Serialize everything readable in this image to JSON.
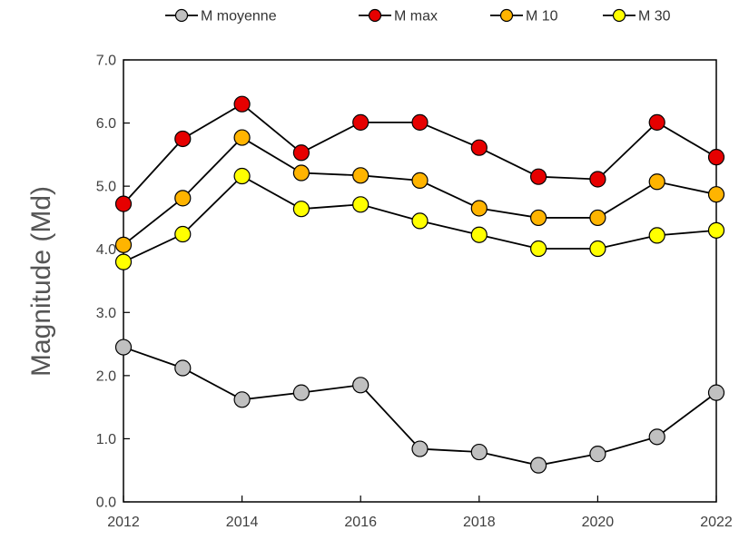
{
  "chart_data": {
    "type": "line",
    "title": "",
    "xlabel": "",
    "ylabel": "Magnitude (Md)",
    "xlim": [
      2012,
      2022
    ],
    "ylim": [
      0.0,
      7.0
    ],
    "x_ticks": [
      2012,
      2014,
      2016,
      2018,
      2020,
      2022
    ],
    "x_tick_labels": [
      "2012",
      "2014",
      "2016",
      "2018",
      "2020",
      "2022"
    ],
    "y_ticks": [
      0,
      1,
      2,
      3,
      4,
      5,
      6,
      7
    ],
    "y_tick_labels": [
      "0.0",
      "1.0",
      "2.0",
      "3.0",
      "4.0",
      "5.0",
      "6.0",
      "7.0"
    ],
    "grid": false,
    "legend_position": "top",
    "x": [
      2012,
      2013,
      2014,
      2015,
      2016,
      2017,
      2018,
      2019,
      2020,
      2021,
      2022
    ],
    "series": [
      {
        "name": "M moyenne",
        "color": "#c0c0c0",
        "values": [
          2.45,
          2.12,
          1.62,
          1.73,
          1.85,
          0.84,
          0.79,
          0.58,
          0.76,
          1.03,
          1.73
        ]
      },
      {
        "name": "M max",
        "color": "#e60000",
        "values": [
          4.72,
          5.75,
          6.3,
          5.53,
          6.01,
          6.01,
          5.61,
          5.15,
          5.11,
          6.01,
          5.46
        ]
      },
      {
        "name": "M 10",
        "color": "#ffb400",
        "values": [
          4.07,
          4.81,
          5.77,
          5.21,
          5.17,
          5.09,
          4.65,
          4.5,
          4.5,
          5.07,
          4.87
        ]
      },
      {
        "name": "M 30",
        "color": "#ffff00",
        "values": [
          3.8,
          4.24,
          5.16,
          4.64,
          4.71,
          4.45,
          4.23,
          4.01,
          4.01,
          4.22,
          4.3
        ]
      }
    ]
  }
}
